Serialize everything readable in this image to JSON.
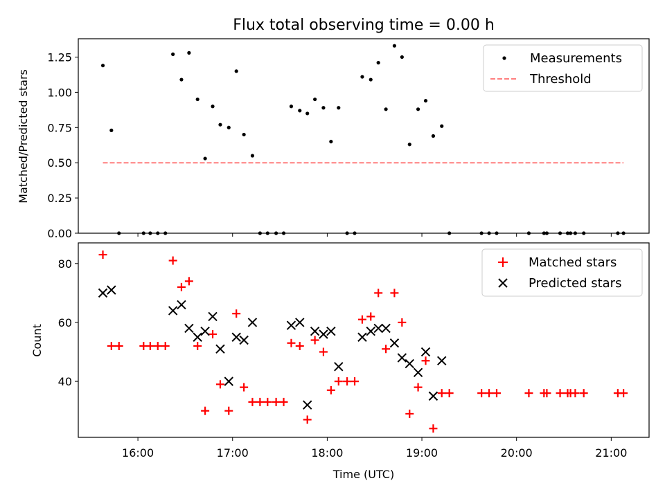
{
  "chart_data": [
    {
      "type": "scatter",
      "title": "Flux total observing time = 0.00 h",
      "xlabel": "",
      "ylabel": "Matched/Predicted stars",
      "xlim": [
        15.37,
        21.4
      ],
      "ylim": [
        0,
        1.38
      ],
      "yticks": [
        0.0,
        0.25,
        0.5,
        0.75,
        1.0,
        1.25
      ],
      "ytick_labels": [
        "0.00",
        "0.25",
        "0.50",
        "0.75",
        "1.00",
        "1.25"
      ],
      "legend_position": "top-right",
      "series": [
        {
          "name": "Measurements",
          "marker": "dot",
          "color": "#000000",
          "x": [
            15.63,
            15.72,
            15.8,
            16.06,
            16.13,
            16.21,
            16.29,
            16.37,
            16.46,
            16.54,
            16.63,
            16.71,
            16.79,
            16.87,
            16.96,
            17.04,
            17.12,
            17.21,
            17.29,
            17.37,
            17.46,
            17.54,
            17.62,
            17.71,
            17.79,
            17.87,
            17.96,
            18.04,
            18.12,
            18.21,
            18.29,
            18.37,
            18.46,
            18.54,
            18.62,
            18.71,
            18.79,
            18.87,
            18.96,
            19.04,
            19.12,
            19.21,
            19.29,
            19.63,
            19.71,
            19.79,
            20.13,
            20.29,
            20.32,
            20.46,
            20.54,
            20.57,
            20.62,
            20.71,
            21.07,
            21.13
          ],
          "y": [
            1.19,
            0.73,
            0.0,
            0.0,
            0.0,
            0.0,
            0.0,
            1.27,
            1.09,
            1.28,
            0.95,
            0.53,
            0.9,
            0.77,
            0.75,
            1.15,
            0.7,
            0.55,
            0.0,
            0.0,
            0.0,
            0.0,
            0.9,
            0.87,
            0.85,
            0.95,
            0.89,
            0.65,
            0.89,
            0.0,
            0.0,
            1.11,
            1.09,
            1.21,
            0.88,
            1.33,
            1.25,
            0.63,
            0.88,
            0.94,
            0.69,
            0.76,
            0.0,
            0.0,
            0.0,
            0.0,
            0.0,
            0.0,
            0.0,
            0.0,
            0.0,
            0.0,
            0.0,
            0.0,
            0.0,
            0.0
          ]
        },
        {
          "name": "Threshold",
          "marker": "dashed-line",
          "color": "#ff7f7f",
          "x": [
            15.63,
            21.13
          ],
          "y": [
            0.5,
            0.5
          ]
        }
      ]
    },
    {
      "type": "scatter",
      "title": "",
      "xlabel": "Time (UTC)",
      "ylabel": "Count",
      "xlim": [
        15.37,
        21.4
      ],
      "ylim": [
        21,
        87
      ],
      "yticks": [
        40,
        60,
        80
      ],
      "ytick_labels": [
        "40",
        "60",
        "80"
      ],
      "xticks": [
        16,
        17,
        18,
        19,
        20,
        21
      ],
      "xtick_labels": [
        "16:00",
        "17:00",
        "18:00",
        "19:00",
        "20:00",
        "21:00"
      ],
      "legend_position": "top-right",
      "series": [
        {
          "name": "Matched stars",
          "marker": "plus",
          "color": "#ff0000",
          "x": [
            15.63,
            15.72,
            15.8,
            16.06,
            16.13,
            16.21,
            16.29,
            16.37,
            16.46,
            16.54,
            16.63,
            16.71,
            16.79,
            16.87,
            16.96,
            17.04,
            17.12,
            17.21,
            17.29,
            17.37,
            17.46,
            17.54,
            17.62,
            17.71,
            17.79,
            17.87,
            17.96,
            18.04,
            18.12,
            18.21,
            18.29,
            18.37,
            18.46,
            18.54,
            18.62,
            18.71,
            18.79,
            18.87,
            18.96,
            19.04,
            19.12,
            19.21,
            19.29,
            19.63,
            19.71,
            19.79,
            20.13,
            20.29,
            20.32,
            20.46,
            20.54,
            20.57,
            20.62,
            20.71,
            21.07,
            21.13
          ],
          "y": [
            83,
            52,
            52,
            52,
            52,
            52,
            52,
            81,
            72,
            74,
            52,
            30,
            56,
            39,
            30,
            63,
            38,
            33,
            33,
            33,
            33,
            33,
            53,
            52,
            27,
            54,
            50,
            37,
            40,
            40,
            40,
            61,
            62,
            70,
            51,
            70,
            60,
            29,
            38,
            47,
            24,
            36,
            36,
            36,
            36,
            36,
            36,
            36,
            36,
            36,
            36,
            36,
            36,
            36,
            36,
            36
          ]
        },
        {
          "name": "Predicted stars",
          "marker": "x",
          "color": "#000000",
          "x": [
            15.63,
            15.72,
            16.37,
            16.46,
            16.54,
            16.63,
            16.71,
            16.79,
            16.87,
            16.96,
            17.04,
            17.12,
            17.21,
            17.62,
            17.71,
            17.79,
            17.87,
            17.96,
            18.04,
            18.12,
            18.37,
            18.46,
            18.54,
            18.62,
            18.71,
            18.79,
            18.87,
            18.96,
            19.04,
            19.12,
            19.21
          ],
          "y": [
            70,
            71,
            64,
            66,
            58,
            55,
            57,
            62,
            51,
            40,
            55,
            54,
            60,
            59,
            60,
            32,
            57,
            56,
            57,
            45,
            55,
            57,
            58,
            58,
            53,
            48,
            46,
            43,
            50,
            35,
            47
          ]
        }
      ]
    }
  ]
}
